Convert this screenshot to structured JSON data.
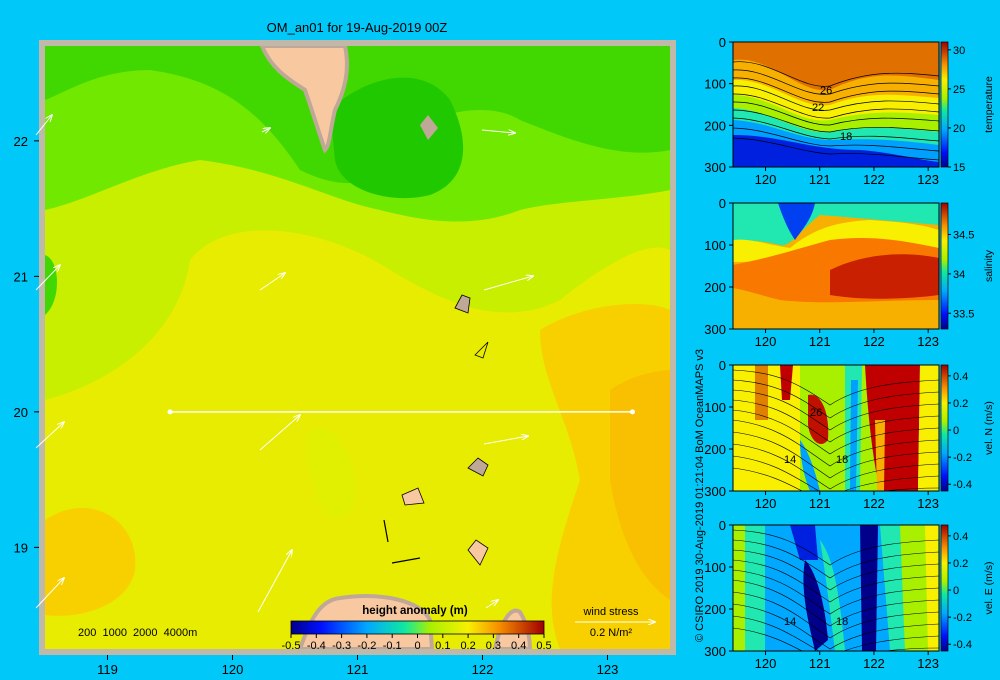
{
  "colors": {
    "background": "#00c8f8",
    "frame": "#c0b8a8",
    "land": "#f8c8a0",
    "coast_shadow": "#c0a898"
  },
  "map": {
    "title": "OM_an01 for 19-Aug-2019 00Z",
    "depth_legend": "200  1000  2000  4000m",
    "colorbar_title": "height anomaly (m)",
    "colorbar_ticks": [
      "-0.5",
      "-0.4",
      "-0.3",
      "-0.2",
      "-0.1",
      "0",
      "0.1",
      "0.2",
      "0.3",
      "0.4",
      "0.5"
    ],
    "wind_stress_label": "wind stress",
    "wind_stress_scale": "0.2 N/m²"
  },
  "credit": "© CSIRO 2019  30-Aug-2019 01:21:04 BoM OceanMAPS v3",
  "chart_data": [
    {
      "type": "heatmap",
      "name": "map",
      "title": "OM_an01 for 19-Aug-2019 00Z",
      "x_ticks": [
        "119",
        "120",
        "121",
        "122",
        "123"
      ],
      "y_ticks": [
        "22",
        "21",
        "20",
        "19"
      ],
      "xlim": [
        118.5,
        123.5
      ],
      "ylim": [
        18.25,
        22.7
      ],
      "colorbar": {
        "title": "height anomaly (m)",
        "range": [
          -0.5,
          0.5
        ]
      },
      "section_line": {
        "lon": [
          119.5,
          123.2
        ],
        "lat": [
          20.0,
          20.0
        ]
      }
    },
    {
      "type": "heatmap",
      "name": "temperature",
      "x_ticks": [
        "120",
        "121",
        "122",
        "123"
      ],
      "y_ticks": [
        "0",
        "100",
        "200",
        "300"
      ],
      "colorbar_label": "temperature",
      "colorbar_ticks": [
        "30",
        "25",
        "20",
        "15"
      ],
      "contour_labels": [
        "26",
        "22",
        "18"
      ],
      "ylim": [
        300,
        0
      ]
    },
    {
      "type": "heatmap",
      "name": "salinity",
      "x_ticks": [
        "120",
        "121",
        "122",
        "123"
      ],
      "y_ticks": [
        "0",
        "100",
        "200",
        "300"
      ],
      "colorbar_label": "salinity",
      "colorbar_ticks": [
        "34.5",
        "34",
        "33.5"
      ],
      "contour_labels": [],
      "ylim": [
        300,
        0
      ]
    },
    {
      "type": "heatmap",
      "name": "velN",
      "x_ticks": [
        "120",
        "121",
        "122",
        "123"
      ],
      "y_ticks": [
        "0",
        "100",
        "200",
        "300"
      ],
      "colorbar_label": "vel. N (m/s)",
      "colorbar_ticks": [
        "0.4",
        "0.2",
        "0",
        "-0.2",
        "-0.4"
      ],
      "contour_labels": [
        "26",
        "14",
        "18"
      ],
      "ylim": [
        300,
        0
      ]
    },
    {
      "type": "heatmap",
      "name": "velE",
      "x_ticks": [
        "120",
        "121",
        "122",
        "123"
      ],
      "y_ticks": [
        "0",
        "100",
        "200",
        "300"
      ],
      "colorbar_label": "vel. E (m/s)",
      "colorbar_ticks": [
        "0.4",
        "0.2",
        "0",
        "-0.2",
        "-0.4"
      ],
      "contour_labels": [
        "14",
        "18"
      ],
      "ylim": [
        300,
        0
      ]
    }
  ]
}
